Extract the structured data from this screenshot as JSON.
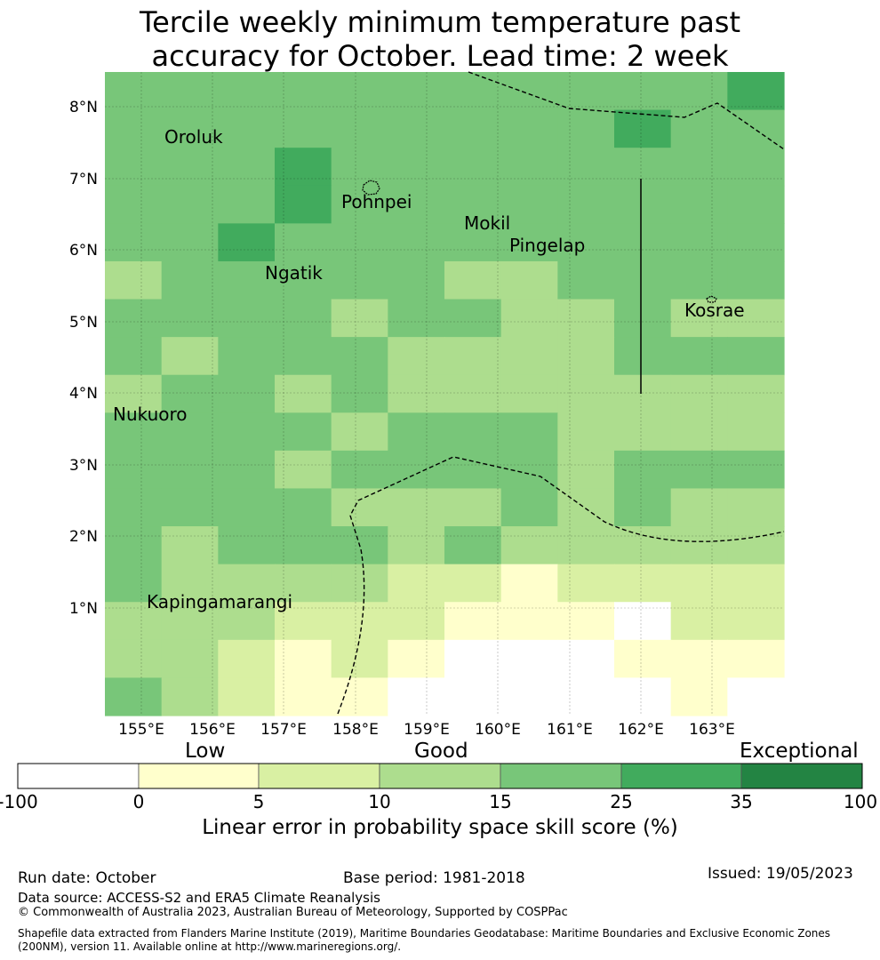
{
  "title_line1": "Tercile weekly minimum temperature past",
  "title_line2": "accuracy for October. Lead time: 2 week",
  "map": {
    "lon_labels": [
      "155°E",
      "156°E",
      "157°E",
      "158°E",
      "159°E",
      "160°E",
      "161°E",
      "162°E",
      "163°E"
    ],
    "lat_labels": [
      "8°N",
      "7°N",
      "6°N",
      "5°N",
      "4°N",
      "3°N",
      "2°N",
      "1°N"
    ],
    "places": [
      "Oroluk",
      "Pohnpei",
      "Mokil",
      "Pingelap",
      "Ngatik",
      "Kosrae",
      "Nukuoro",
      "Kapingamarangi"
    ],
    "colors": {
      "low": "#ffffcc",
      "c5_10": "#d9f0a3",
      "c10_15": "#addd8e",
      "c15_25": "#78c679",
      "c25_35": "#41ab5d",
      "c35_100": "#238443",
      "none": "#ffffff"
    },
    "grid_values": [
      [
        18,
        18,
        18,
        18,
        18,
        18,
        18,
        18,
        18,
        18,
        18,
        30
      ],
      [
        18,
        18,
        18,
        18,
        18,
        18,
        18,
        18,
        18,
        30,
        18,
        18
      ],
      [
        18,
        18,
        18,
        30,
        18,
        18,
        18,
        18,
        18,
        18,
        18,
        18
      ],
      [
        18,
        18,
        18,
        30,
        18,
        18,
        18,
        18,
        18,
        18,
        18,
        18
      ],
      [
        18,
        18,
        30,
        18,
        18,
        18,
        18,
        18,
        18,
        18,
        18,
        18
      ],
      [
        12,
        18,
        18,
        18,
        18,
        18,
        12,
        12,
        18,
        18,
        18,
        18
      ],
      [
        18,
        18,
        18,
        18,
        12,
        18,
        18,
        12,
        12,
        18,
        12,
        12
      ],
      [
        18,
        12,
        18,
        18,
        18,
        12,
        12,
        12,
        12,
        18,
        18,
        18
      ],
      [
        12,
        18,
        18,
        12,
        18,
        12,
        12,
        12,
        12,
        12,
        12,
        12
      ],
      [
        18,
        18,
        18,
        18,
        12,
        18,
        18,
        18,
        12,
        12,
        12,
        12
      ],
      [
        18,
        18,
        18,
        12,
        18,
        18,
        18,
        18,
        12,
        18,
        18,
        18
      ],
      [
        18,
        18,
        18,
        18,
        12,
        12,
        12,
        18,
        12,
        18,
        12,
        12
      ],
      [
        18,
        12,
        18,
        18,
        18,
        12,
        18,
        12,
        12,
        12,
        12,
        12
      ],
      [
        18,
        12,
        12,
        12,
        12,
        8,
        8,
        3,
        8,
        8,
        8,
        8
      ],
      [
        12,
        12,
        12,
        8,
        8,
        8,
        3,
        3,
        3,
        -1,
        8,
        8
      ],
      [
        12,
        12,
        8,
        3,
        8,
        3,
        -1,
        -1,
        -1,
        3,
        3,
        3
      ],
      [
        18,
        12,
        8,
        3,
        3,
        -1,
        -1,
        -1,
        -1,
        -1,
        3,
        -1
      ]
    ]
  },
  "colorbar": {
    "category_labels": [
      "Low",
      "Good",
      "Exceptional"
    ],
    "ticks": [
      "-100",
      "0",
      "5",
      "10",
      "15",
      "25",
      "35",
      "100"
    ],
    "title": "Linear error in probability space skill score (%)"
  },
  "footer": {
    "run_date": "Run date: October",
    "base_period": "Base period: 1981-2018",
    "issued": "Issued: 19/05/2023",
    "data_source": "Data source: ACCESS-S2 and ERA5 Climate Reanalysis",
    "copyright": "© Commonwealth of Australia 2023, Australian Bureau of Meteorology, Supported by COSPPac",
    "shapefile": "Shapefile data extracted from Flanders Marine Institute (2019), Maritime Boundaries Geodatabase: Maritime Boundaries and Exclusive Economic Zones (200NM), version 11. Available online at http://www.marineregions.org/."
  }
}
